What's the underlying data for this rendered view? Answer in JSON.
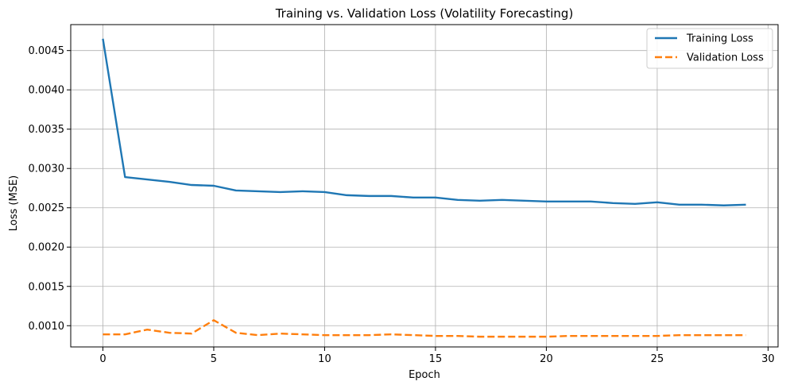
{
  "chart_data": {
    "type": "line",
    "title": "Training vs. Validation Loss (Volatility Forecasting)",
    "xlabel": "Epoch",
    "ylabel": "Loss (MSE)",
    "xlim": [
      -1.45,
      30.45
    ],
    "ylim": [
      0.00073,
      0.00483
    ],
    "xticks": [
      0,
      5,
      10,
      15,
      20,
      25,
      30
    ],
    "yticks": [
      0.001,
      0.0015,
      0.002,
      0.0025,
      0.003,
      0.0035,
      0.004,
      0.0045
    ],
    "grid": true,
    "legend_position": "top-right",
    "x": [
      0,
      1,
      2,
      3,
      4,
      5,
      6,
      7,
      8,
      9,
      10,
      11,
      12,
      13,
      14,
      15,
      16,
      17,
      18,
      19,
      20,
      21,
      22,
      23,
      24,
      25,
      26,
      27,
      28,
      29
    ],
    "series": [
      {
        "name": "Training Loss",
        "color": "#1f77b4",
        "dash": "solid",
        "values": [
          0.00465,
          0.00289,
          0.00286,
          0.00283,
          0.00279,
          0.00278,
          0.00272,
          0.00271,
          0.0027,
          0.00271,
          0.0027,
          0.00266,
          0.00265,
          0.00265,
          0.00263,
          0.00263,
          0.0026,
          0.00259,
          0.0026,
          0.00259,
          0.00258,
          0.00258,
          0.00258,
          0.00256,
          0.00255,
          0.00257,
          0.00254,
          0.00254,
          0.00253,
          0.00254
        ]
      },
      {
        "name": "Validation Loss",
        "color": "#ff7f0e",
        "dash": "dashed",
        "values": [
          0.00089,
          0.00089,
          0.00095,
          0.00091,
          0.0009,
          0.00107,
          0.00091,
          0.00088,
          0.0009,
          0.00089,
          0.00088,
          0.00088,
          0.00088,
          0.00089,
          0.00088,
          0.00087,
          0.00087,
          0.00086,
          0.00086,
          0.00086,
          0.00086,
          0.00087,
          0.00087,
          0.00087,
          0.00087,
          0.00087,
          0.00088,
          0.00088,
          0.00088,
          0.00088
        ]
      }
    ]
  }
}
